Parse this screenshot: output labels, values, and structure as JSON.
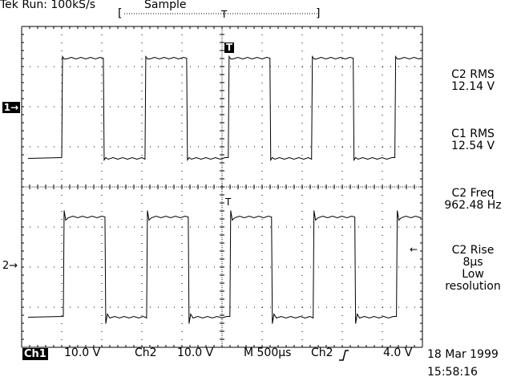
{
  "header": {
    "status": "Tek Run: 100kS/s",
    "mode": "Sample"
  },
  "trigger_bar": {
    "left_bracket": "[",
    "right_bracket": "]",
    "position_label": "T"
  },
  "markers": {
    "ch1": "1→",
    "ch2": "2→",
    "trigger_top": "T",
    "trigger_mid": "T",
    "rise_arrow": "←"
  },
  "measurements": [
    {
      "label": "C2 RMS",
      "value": "12.14 V"
    },
    {
      "label": "C1 RMS",
      "value": "12.54 V"
    },
    {
      "label": "C2 Freq",
      "value": "962.48 Hz"
    },
    {
      "label": "C2 Rise",
      "value": "8μs",
      "extra1": "Low",
      "extra2": "resolution"
    }
  ],
  "footer": {
    "ch1_label": "Ch1",
    "ch1_scale": "10.0 V",
    "ch2_label": "Ch2",
    "ch2_scale": "10.0 V",
    "timebase": "M  500μs",
    "trigger_source": "Ch2",
    "trigger_level": "4.0 V",
    "date": "18 Mar 1999",
    "time": "15:58:16"
  },
  "waveforms": {
    "ch1": {
      "high_volts": 12.5,
      "low_volts": -12.5,
      "period_us": 1039
    },
    "ch2": {
      "high_volts": 12.5,
      "low_volts": -12.5,
      "period_us": 1039
    }
  },
  "colors": {
    "background": "#ffffff",
    "trace": "#000000",
    "grid": "#000000"
  }
}
